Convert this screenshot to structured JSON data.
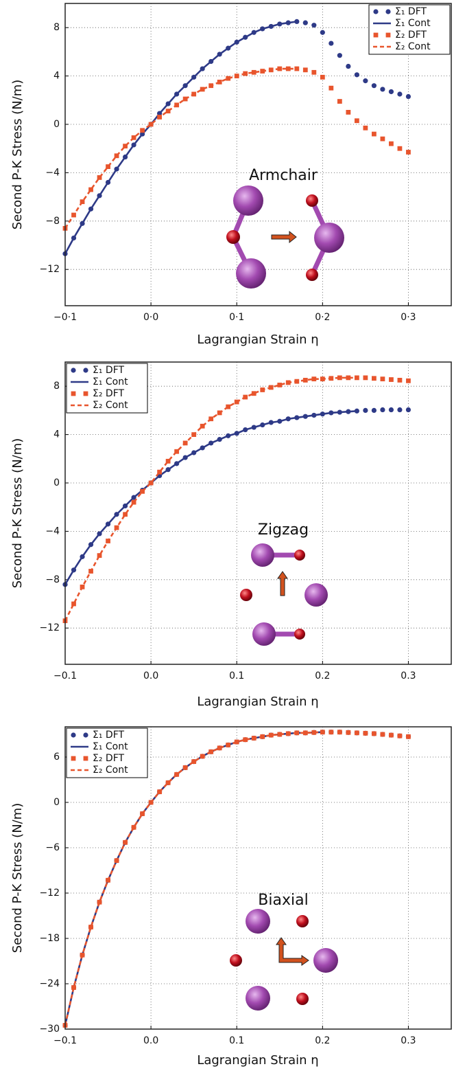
{
  "chart_data": [
    {
      "type": "line",
      "annotation": "Armchair",
      "x_label": "Lagrangian Strain η",
      "y_label": "Second P-K Stress (N/m)",
      "xlim": [
        -0.1,
        0.35
      ],
      "ylim": [
        -15,
        10
      ],
      "xticks": [
        {
          "value": -0.1,
          "label": "−0·1"
        },
        {
          "value": 0,
          "label": "0·0"
        },
        {
          "value": 0.1,
          "label": "0·1"
        },
        {
          "value": 0.2,
          "label": "0·2"
        },
        {
          "value": 0.3,
          "label": "0·3"
        }
      ],
      "yticks": [
        {
          "value": -12,
          "label": "−12"
        },
        {
          "value": -8,
          "label": "−8"
        },
        {
          "value": -4,
          "label": "−4"
        },
        0,
        4,
        8
      ],
      "grid": true,
      "legend": "upper right",
      "x": [
        -0.1,
        -0.09,
        -0.08,
        -0.07,
        -0.06,
        -0.05,
        -0.04,
        -0.03,
        -0.02,
        -0.01,
        0,
        0.01,
        0.02,
        0.03,
        0.04,
        0.05,
        0.06,
        0.07,
        0.08,
        0.09,
        0.1,
        0.11,
        0.12,
        0.13,
        0.14,
        0.15,
        0.16,
        0.17,
        0.18,
        0.19,
        0.2,
        0.21,
        0.22,
        0.23,
        0.24,
        0.25,
        0.26,
        0.27,
        0.28,
        0.29,
        0.3
      ],
      "series": [
        {
          "name": "Σ₁ DFT",
          "color": "#2e3a87",
          "marker": "circle",
          "values": [
            -10.7,
            -9.4,
            -8.2,
            -7.0,
            -5.9,
            -4.8,
            -3.7,
            -2.7,
            -1.7,
            -0.8,
            0,
            0.9,
            1.7,
            2.5,
            3.2,
            3.9,
            4.6,
            5.2,
            5.8,
            6.3,
            6.8,
            7.2,
            7.6,
            7.9,
            8.1,
            8.3,
            8.4,
            8.5,
            8.4,
            8.2,
            7.6,
            6.7,
            5.7,
            4.8,
            4.1,
            3.6,
            3.2,
            2.9,
            2.7,
            2.5,
            2.3
          ]
        },
        {
          "name": "Σ₁ Cont",
          "color": "#2e3a87",
          "dash": false,
          "values": [
            -10.7,
            -9.4,
            -8.2,
            -7.0,
            -5.9,
            -4.8,
            -3.7,
            -2.7,
            -1.7,
            -0.8,
            0,
            0.9,
            1.7,
            2.5,
            3.2,
            3.9,
            4.6,
            5.2,
            5.8,
            6.3,
            6.8,
            7.2,
            7.6,
            7.9,
            8.1,
            8.3,
            8.4,
            8.5,
            null,
            null,
            null,
            null,
            null,
            null,
            null,
            null,
            null,
            null,
            null,
            null,
            null
          ]
        },
        {
          "name": "Σ₂ DFT",
          "color": "#e8552d",
          "marker": "square",
          "values": [
            -8.6,
            -7.5,
            -6.4,
            -5.4,
            -4.4,
            -3.5,
            -2.6,
            -1.8,
            -1.1,
            -0.5,
            0,
            0.6,
            1.1,
            1.6,
            2.1,
            2.5,
            2.9,
            3.2,
            3.5,
            3.8,
            4.0,
            4.2,
            4.3,
            4.4,
            4.5,
            4.6,
            4.6,
            4.6,
            4.5,
            4.3,
            3.9,
            3.0,
            1.9,
            1.0,
            0.3,
            -0.3,
            -0.8,
            -1.2,
            -1.6,
            -2.0,
            -2.3
          ]
        },
        {
          "name": "Σ₂ Cont",
          "color": "#e8552d",
          "dash": true,
          "values": [
            -8.6,
            -7.5,
            -6.4,
            -5.4,
            -4.4,
            -3.5,
            -2.6,
            -1.8,
            -1.1,
            -0.5,
            0,
            0.6,
            1.1,
            1.6,
            2.1,
            2.5,
            2.9,
            3.2,
            3.5,
            3.8,
            4.0,
            4.2,
            4.3,
            4.4,
            4.5,
            4.6,
            4.6,
            4.6,
            null,
            null,
            null,
            null,
            null,
            null,
            null,
            null,
            null,
            null,
            null,
            null,
            null
          ]
        }
      ]
    },
    {
      "type": "line",
      "annotation": "Zigzag",
      "x_label": "Lagrangian Strain η",
      "y_label": "Second P-K Stress (N/m)",
      "xlim": [
        -0.1,
        0.35
      ],
      "ylim": [
        -15,
        10
      ],
      "xticks": [
        {
          "value": -0.1,
          "label": "−0.1"
        },
        {
          "value": 0,
          "label": "0.0"
        },
        0.1,
        0.2,
        0.3
      ],
      "yticks": [
        {
          "value": -12,
          "label": "−12"
        },
        {
          "value": -8,
          "label": "−8"
        },
        {
          "value": -4,
          "label": "−4"
        },
        0,
        4,
        8
      ],
      "grid": true,
      "legend": "upper left",
      "x": [
        -0.1,
        -0.09,
        -0.08,
        -0.07,
        -0.06,
        -0.05,
        -0.04,
        -0.03,
        -0.02,
        -0.01,
        0,
        0.01,
        0.02,
        0.03,
        0.04,
        0.05,
        0.06,
        0.07,
        0.08,
        0.09,
        0.1,
        0.11,
        0.12,
        0.13,
        0.14,
        0.15,
        0.16,
        0.17,
        0.18,
        0.19,
        0.2,
        0.21,
        0.22,
        0.23,
        0.24,
        0.25,
        0.26,
        0.27,
        0.28,
        0.29,
        0.3
      ],
      "series": [
        {
          "name": "Σ₁ DFT",
          "color": "#2e3a87",
          "marker": "circle",
          "values": [
            -8.4,
            -7.2,
            -6.1,
            -5.1,
            -4.2,
            -3.4,
            -2.6,
            -1.9,
            -1.2,
            -0.6,
            0,
            0.6,
            1.1,
            1.6,
            2.1,
            2.5,
            2.9,
            3.3,
            3.6,
            3.9,
            4.1,
            4.4,
            4.6,
            4.8,
            5.0,
            5.1,
            5.3,
            5.4,
            5.5,
            5.6,
            5.7,
            5.8,
            5.85,
            5.9,
            5.95,
            6.0,
            6.0,
            6.05,
            6.05,
            6.05,
            6.05
          ]
        },
        {
          "name": "Σ₁ Cont",
          "color": "#2e3a87",
          "dash": false,
          "values": [
            -8.4,
            -7.2,
            -6.1,
            -5.1,
            -4.2,
            -3.4,
            -2.6,
            -1.9,
            -1.2,
            -0.6,
            0,
            0.6,
            1.1,
            1.6,
            2.1,
            2.5,
            2.9,
            3.3,
            3.6,
            3.9,
            4.1,
            4.4,
            4.6,
            4.8,
            5.0,
            5.1,
            5.3,
            5.4,
            5.5,
            5.6,
            5.7,
            5.8,
            5.85,
            5.9,
            5.95,
            null,
            null,
            null,
            null,
            null,
            null
          ]
        },
        {
          "name": "Σ₂ DFT",
          "color": "#e8552d",
          "marker": "square",
          "values": [
            -11.4,
            -10.0,
            -8.6,
            -7.3,
            -6.0,
            -4.8,
            -3.7,
            -2.6,
            -1.6,
            -0.7,
            0,
            0.9,
            1.8,
            2.6,
            3.3,
            4.0,
            4.7,
            5.3,
            5.8,
            6.3,
            6.7,
            7.1,
            7.4,
            7.7,
            7.9,
            8.1,
            8.3,
            8.4,
            8.5,
            8.6,
            8.6,
            8.65,
            8.7,
            8.7,
            8.7,
            8.7,
            8.65,
            8.6,
            8.55,
            8.5,
            8.45
          ]
        },
        {
          "name": "Σ₂ Cont",
          "color": "#e8552d",
          "dash": true,
          "values": [
            -11.4,
            -10.0,
            -8.6,
            -7.3,
            -6.0,
            -4.8,
            -3.7,
            -2.6,
            -1.6,
            -0.7,
            0,
            0.9,
            1.8,
            2.6,
            3.3,
            4.0,
            4.7,
            5.3,
            5.8,
            6.3,
            6.7,
            7.1,
            7.4,
            7.7,
            7.9,
            8.1,
            8.3,
            8.4,
            8.5,
            8.6,
            8.6,
            8.65,
            8.7,
            8.7,
            8.7,
            null,
            null,
            null,
            null,
            null,
            null
          ]
        }
      ]
    },
    {
      "type": "line",
      "annotation": "Biaxial",
      "x_label": "Lagrangian Strain η",
      "y_label": "Second P-K Stress (N/m)",
      "xlim": [
        -0.1,
        0.35
      ],
      "ylim": [
        -30,
        10
      ],
      "xticks": [
        {
          "value": -0.1,
          "label": "−0.1"
        },
        {
          "value": 0,
          "label": "0.0"
        },
        0.1,
        0.2,
        0.3
      ],
      "yticks": [
        {
          "value": -30,
          "label": "−30"
        },
        {
          "value": -24,
          "label": "−24"
        },
        {
          "value": -18,
          "label": "−18"
        },
        {
          "value": -12,
          "label": "−12"
        },
        {
          "value": -6,
          "label": "−6"
        },
        0,
        6
      ],
      "grid": true,
      "legend": "upper left",
      "x": [
        -0.1,
        -0.09,
        -0.08,
        -0.07,
        -0.06,
        -0.05,
        -0.04,
        -0.03,
        -0.02,
        -0.01,
        0,
        0.01,
        0.02,
        0.03,
        0.04,
        0.05,
        0.06,
        0.07,
        0.08,
        0.09,
        0.1,
        0.11,
        0.12,
        0.13,
        0.14,
        0.15,
        0.16,
        0.17,
        0.18,
        0.19,
        0.2,
        0.21,
        0.22,
        0.23,
        0.24,
        0.25,
        0.26,
        0.27,
        0.28,
        0.29,
        0.3
      ],
      "series": [
        {
          "name": "Σ₁ DFT",
          "color": "#2e3a87",
          "marker": "circle",
          "values": [
            -29.5,
            -24.5,
            -20.2,
            -16.5,
            -13.2,
            -10.3,
            -7.7,
            -5.3,
            -3.3,
            -1.5,
            0,
            1.4,
            2.6,
            3.7,
            4.6,
            5.4,
            6.1,
            6.7,
            7.2,
            7.6,
            8.0,
            8.3,
            8.5,
            8.7,
            8.9,
            9.0,
            9.1,
            9.2,
            9.2,
            9.25,
            9.3,
            9.3,
            9.3,
            9.25,
            9.2,
            9.15,
            9.1,
            9.0,
            8.9,
            8.8,
            8.7
          ]
        },
        {
          "name": "Σ₁ Cont",
          "color": "#2e3a87",
          "dash": false,
          "values": [
            -29.5,
            -24.5,
            -20.2,
            -16.5,
            -13.2,
            -10.3,
            -7.7,
            -5.3,
            -3.3,
            -1.5,
            0,
            1.4,
            2.6,
            3.7,
            4.6,
            5.4,
            6.1,
            6.7,
            7.2,
            7.6,
            8.0,
            8.3,
            8.5,
            8.7,
            8.9,
            9.0,
            9.1,
            9.2,
            9.2,
            9.25,
            9.3,
            null,
            null,
            null,
            null,
            null,
            null,
            null,
            null,
            null,
            null
          ]
        },
        {
          "name": "Σ₂ DFT",
          "color": "#e8552d",
          "marker": "square",
          "values": [
            -29.5,
            -24.5,
            -20.2,
            -16.5,
            -13.2,
            -10.3,
            -7.7,
            -5.3,
            -3.3,
            -1.5,
            0,
            1.4,
            2.6,
            3.7,
            4.6,
            5.4,
            6.1,
            6.7,
            7.2,
            7.6,
            8.0,
            8.3,
            8.5,
            8.7,
            8.9,
            9.0,
            9.1,
            9.2,
            9.2,
            9.25,
            9.3,
            9.3,
            9.3,
            9.25,
            9.2,
            9.15,
            9.1,
            9.0,
            8.9,
            8.8,
            8.7
          ]
        },
        {
          "name": "Σ₂ Cont",
          "color": "#e8552d",
          "dash": true,
          "values": [
            -29.5,
            -24.5,
            -20.2,
            -16.5,
            -13.2,
            -10.3,
            -7.7,
            -5.3,
            -3.3,
            -1.5,
            0,
            1.4,
            2.6,
            3.7,
            4.6,
            5.4,
            6.1,
            6.7,
            7.2,
            7.6,
            8.0,
            8.3,
            8.5,
            8.7,
            8.9,
            9.0,
            9.1,
            9.2,
            9.2,
            9.25,
            9.3,
            null,
            null,
            null,
            null,
            null,
            null,
            null,
            null,
            null,
            null
          ]
        }
      ]
    }
  ]
}
